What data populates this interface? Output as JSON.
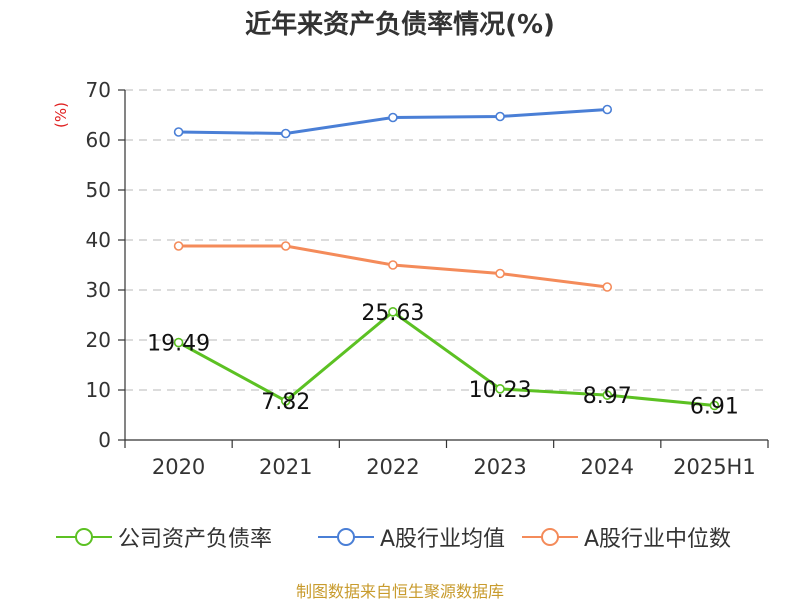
{
  "chart_data": {
    "type": "line",
    "title": "近年来资产负债率情况(%)",
    "ylabel": "(%)",
    "categories": [
      "2020",
      "2021",
      "2022",
      "2023",
      "2024",
      "2025H1"
    ],
    "ylim": [
      0,
      70
    ],
    "yticks": [
      0,
      10,
      20,
      30,
      40,
      50,
      60,
      70
    ],
    "grid": true,
    "legend_position": "bottom",
    "series": [
      {
        "name": "公司资产负债率",
        "color": "#5cc123",
        "values": [
          19.49,
          7.82,
          25.63,
          10.23,
          8.97,
          6.91
        ],
        "labels": [
          "19.49",
          "7.82",
          "25.63",
          "10.23",
          "8.97",
          "6.91"
        ]
      },
      {
        "name": "A股行业均值",
        "color": "#4a7fd6",
        "values": [
          61.6,
          61.3,
          64.5,
          64.7,
          66.1,
          null
        ]
      },
      {
        "name": "A股行业中位数",
        "color": "#f48b5a",
        "values": [
          38.8,
          38.8,
          35.0,
          33.3,
          30.6,
          null
        ]
      }
    ],
    "source": "制图数据来自恒生聚源数据库"
  }
}
